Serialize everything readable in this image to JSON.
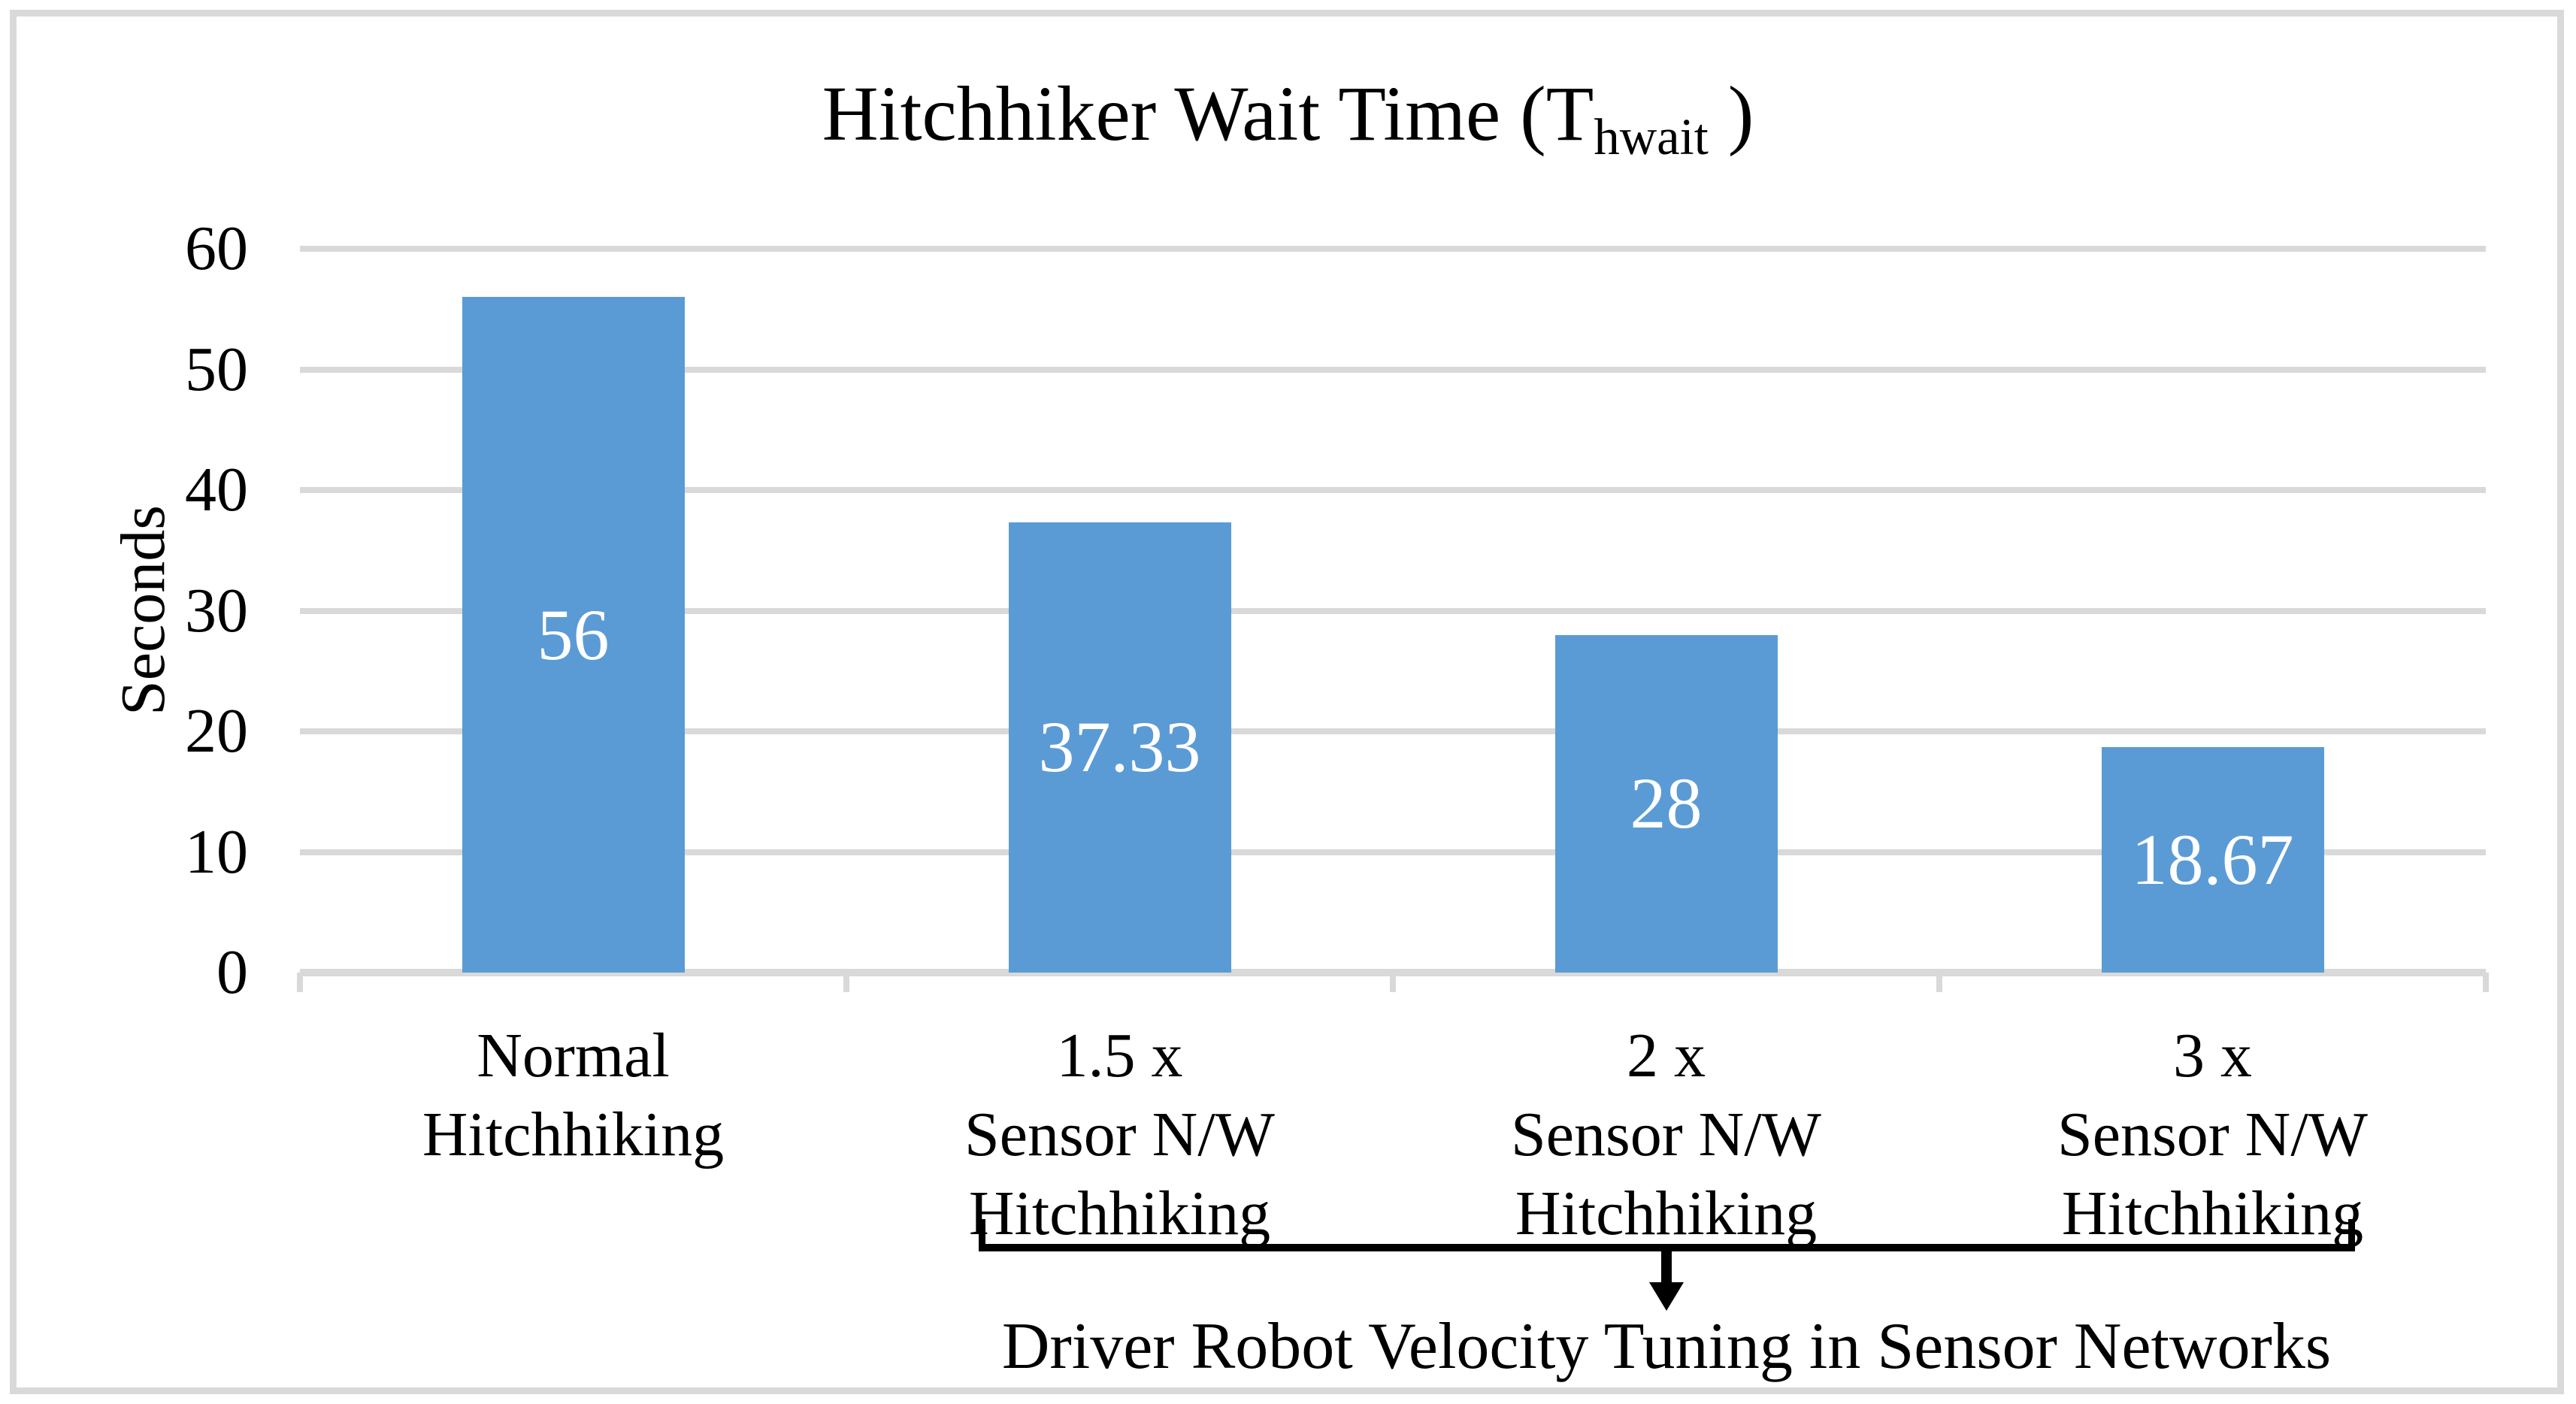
{
  "frame": {
    "border_color": "#d9d9d9"
  },
  "chart_data": {
    "type": "bar",
    "title": {
      "prefix": "Hitchhiker Wait Time (T",
      "subscript": "hwait",
      "suffix": " )"
    },
    "title_plain": "Hitchhiker Wait Time (T_hwait)",
    "ylabel": "Seconds",
    "xlabel": "",
    "ylim": [
      0,
      60
    ],
    "yticks": [
      0,
      10,
      20,
      30,
      40,
      50,
      60
    ],
    "grid": "horizontal-light-gray",
    "legend": "none",
    "bar_color": "#5b9bd5",
    "gridline_color": "#d9d9d9",
    "value_label_color": "#ffffff",
    "categories": [
      "Normal Hitchhiking",
      "1.5 x Sensor N/W Hitchhiking",
      "2 x Sensor N/W Hitchhiking",
      "3 x Sensor N/W Hitchhiking"
    ],
    "category_lines": [
      [
        "Normal",
        "Hitchhiking"
      ],
      [
        "1.5 x",
        "Sensor N/W",
        "Hitchhiking"
      ],
      [
        "2 x",
        "Sensor N/W",
        "Hitchhiking"
      ],
      [
        "3 x",
        "Sensor N/W",
        "Hitchhiking"
      ]
    ],
    "values": [
      56,
      37.33,
      28,
      18.67
    ],
    "value_labels": [
      "56",
      "37.33",
      "28",
      "18.67"
    ],
    "annotation": {
      "text": "Driver Robot Velocity Tuning in Sensor Networks",
      "covers_categories": [
        "1.5 x Sensor N/W Hitchhiking",
        "2 x Sensor N/W Hitchhiking",
        "3 x Sensor N/W Hitchhiking"
      ],
      "marker": "underbrace-with-down-arrow"
    }
  }
}
